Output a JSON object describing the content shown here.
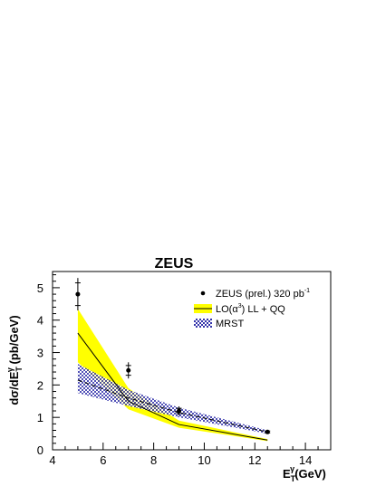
{
  "chart_data": {
    "type": "line",
    "title": "ZEUS",
    "xlim": [
      4,
      15
    ],
    "ylim": [
      0,
      5.5
    ],
    "x_ticks": [
      4,
      6,
      8,
      10,
      12,
      14
    ],
    "y_ticks": [
      0,
      1,
      2,
      3,
      4,
      5
    ],
    "legend_position": "top-right",
    "series": [
      {
        "name": "ZEUS (prel.) 320 pb",
        "kind": "points",
        "x": [
          5,
          7,
          9,
          12.5
        ],
        "y": [
          4.8,
          2.45,
          1.2,
          0.55
        ],
        "yerr_inner": [
          0.35,
          0.15,
          0.08,
          0.03
        ],
        "yerr_outer": [
          0.5,
          0.25,
          0.14,
          0.05
        ]
      },
      {
        "name": "LL + QQ",
        "kind": "band-line",
        "x": [
          5,
          7,
          9,
          12.5
        ],
        "y": [
          3.6,
          1.5,
          0.78,
          0.3
        ],
        "band_low": [
          2.7,
          1.25,
          0.68,
          0.27
        ],
        "band_high": [
          4.35,
          1.9,
          0.9,
          0.33
        ]
      },
      {
        "name": "MRST",
        "kind": "band-dashed",
        "x": [
          5,
          7,
          9,
          12.5
        ],
        "y": [
          2.15,
          1.6,
          1.15,
          0.55
        ],
        "band_low": [
          1.75,
          1.35,
          1.0,
          0.5
        ],
        "band_high": [
          2.65,
          1.85,
          1.3,
          0.6
        ]
      }
    ],
    "colors": {
      "ll_band": "#ffff00",
      "mrst_band": "#3333aa",
      "line": "#000000"
    }
  },
  "labels": {
    "title": "ZEUS",
    "y_axis": "dσ/dE",
    "y_axis_sub": "T",
    "y_axis_sup": "γ",
    "y_axis_units": " (pb/GeV)",
    "x_axis": "E",
    "x_axis_sub": "T",
    "x_axis_sup": "γ",
    "x_axis_units": "(GeV)",
    "legend_data": "ZEUS (prel.) 320 pb",
    "legend_data_sup": "-1",
    "legend_lo_prefix": "LO(α",
    "legend_lo_sup": "3",
    "legend_lo_suffix": ") LL + QQ",
    "legend_mrst": "MRST"
  }
}
